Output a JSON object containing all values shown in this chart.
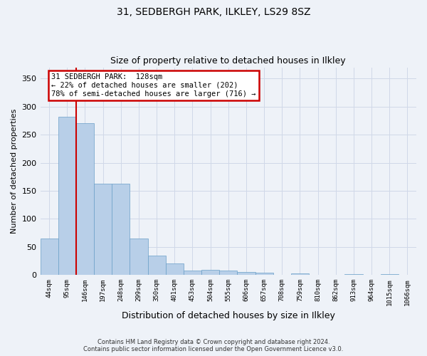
{
  "title1": "31, SEDBERGH PARK, ILKLEY, LS29 8SZ",
  "title2": "Size of property relative to detached houses in Ilkley",
  "xlabel": "Distribution of detached houses by size in Ilkley",
  "ylabel": "Number of detached properties",
  "categories": [
    "44sqm",
    "95sqm",
    "146sqm",
    "197sqm",
    "248sqm",
    "299sqm",
    "350sqm",
    "401sqm",
    "453sqm",
    "504sqm",
    "555sqm",
    "606sqm",
    "657sqm",
    "708sqm",
    "759sqm",
    "810sqm",
    "862sqm",
    "913sqm",
    "964sqm",
    "1015sqm",
    "1066sqm"
  ],
  "values": [
    65,
    282,
    270,
    163,
    163,
    65,
    35,
    20,
    8,
    9,
    8,
    5,
    4,
    0,
    3,
    0,
    0,
    2,
    0,
    2,
    0
  ],
  "bar_color": "#b8cfe8",
  "bar_edge_color": "#6a9fc8",
  "grid_color": "#d0d8e8",
  "annotation_box_color": "#ffffff",
  "annotation_border_color": "#cc0000",
  "vline_color": "#cc0000",
  "vline_x": 1.5,
  "annotation_text_line1": "31 SEDBERGH PARK:  128sqm",
  "annotation_text_line2": "← 22% of detached houses are smaller (202)",
  "annotation_text_line3": "78% of semi-detached houses are larger (716) →",
  "footer_line1": "Contains HM Land Registry data © Crown copyright and database right 2024.",
  "footer_line2": "Contains public sector information licensed under the Open Government Licence v3.0.",
  "yticks": [
    0,
    50,
    100,
    150,
    200,
    250,
    300,
    350
  ],
  "ylim": [
    0,
    370
  ],
  "background_color": "#eef2f8"
}
